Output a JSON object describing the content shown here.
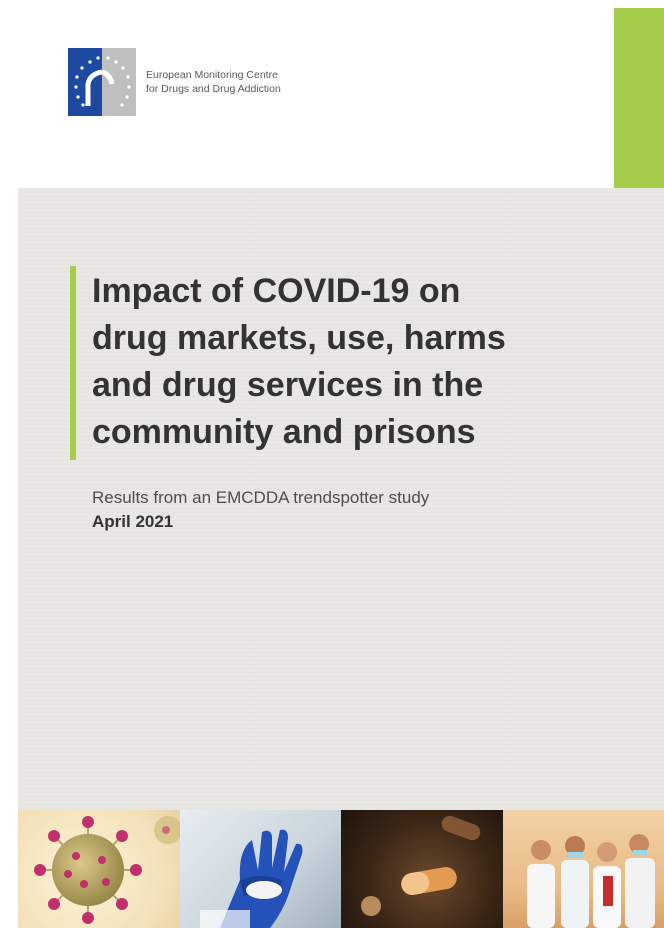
{
  "header": {
    "agency_line1": "European Monitoring Centre",
    "agency_line2": "for Drugs and Drug Addiction",
    "logo_icon": "emcdda-logo-icon",
    "accent_color": "#a5cd4a",
    "logo_blue": "#1d4aa0"
  },
  "cover": {
    "title_lines": [
      "Impact of COVID-19 on",
      "drug markets, use, harms",
      "and drug services in the",
      "community and prisons"
    ],
    "subtitle": "Results from an EMCDDA trendspotter study",
    "date": "April 2021",
    "background": "#e9e7e4"
  },
  "photos": [
    {
      "icon": "coronavirus-image"
    },
    {
      "icon": "gloved-hand-powder-image"
    },
    {
      "icon": "pills-image"
    },
    {
      "icon": "medical-staff-image"
    }
  ]
}
